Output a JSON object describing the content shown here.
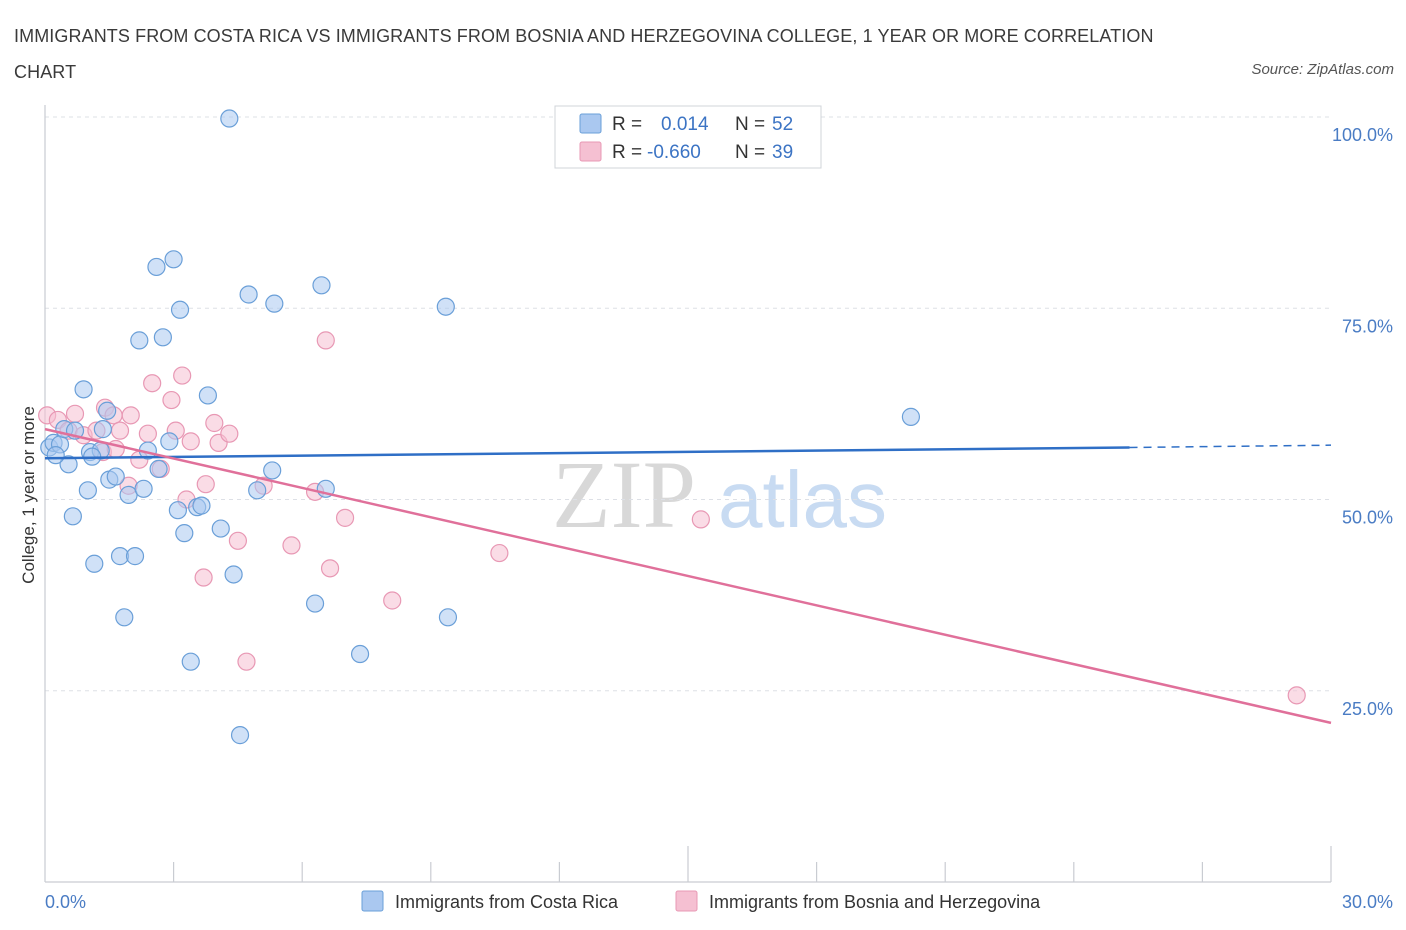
{
  "title": "IMMIGRANTS FROM COSTA RICA VS IMMIGRANTS FROM BOSNIA AND HERZEGOVINA COLLEGE, 1 YEAR OR MORE CORRELATION CHART",
  "source": "Source: ZipAtlas.com",
  "watermark": {
    "zip": "ZIP",
    "atlas": "atlas"
  },
  "colors": {
    "blue_fill": "#aac8f0",
    "blue_stroke": "#6a9fd8",
    "blue_line": "#2f6fc6",
    "pink_fill": "#f5c0d2",
    "pink_stroke": "#e898b4",
    "pink_line": "#e0709a",
    "tick_text": "#4a7cc4",
    "grid": "#dde0e6"
  },
  "legend": {
    "rows": [
      {
        "r_label": "R =",
        "r_value": "0.014",
        "n_label": "N =",
        "n_value": "52"
      },
      {
        "r_label": "R =",
        "r_value": "-0.660",
        "n_label": "N =",
        "n_value": "39"
      }
    ]
  },
  "chart_data": {
    "type": "scatter",
    "title": "IMMIGRANTS FROM COSTA RICA VS IMMIGRANTS FROM BOSNIA AND HERZEGOVINA COLLEGE, 1 YEAR OR MORE CORRELATION CHART",
    "xlabel": "",
    "ylabel": "College, 1 year or more",
    "xlim": [
      0,
      30
    ],
    "ylim": [
      0,
      100
    ],
    "x_tick_labels": [
      "0.0%",
      "30.0%"
    ],
    "y_tick_labels": [
      "100.0%",
      "75.0%",
      "50.0%",
      "25.0%"
    ],
    "y_gridlines": [
      100,
      75,
      50,
      25
    ],
    "series": [
      {
        "name": "Immigrants from Costa Rica",
        "R": 0.014,
        "N": 52,
        "trend": {
          "x0": 0,
          "y0": 55.4,
          "x1": 25.3,
          "y1": 56.8,
          "dashed_to_x": 30,
          "dashed_to_y": 57.1
        },
        "points": [
          [
            0.1,
            56.8
          ],
          [
            0.2,
            57.4
          ],
          [
            0.35,
            57.2
          ],
          [
            0.45,
            59.2
          ],
          [
            0.55,
            54.6
          ],
          [
            0.65,
            47.8
          ],
          [
            0.9,
            64.4
          ],
          [
            1.0,
            51.2
          ],
          [
            1.05,
            56.2
          ],
          [
            1.15,
            41.6
          ],
          [
            1.3,
            56.4
          ],
          [
            1.35,
            59.2
          ],
          [
            1.45,
            61.6
          ],
          [
            1.5,
            52.6
          ],
          [
            1.65,
            53.0
          ],
          [
            1.75,
            42.6
          ],
          [
            1.85,
            34.6
          ],
          [
            1.95,
            50.6
          ],
          [
            2.1,
            42.6
          ],
          [
            2.2,
            70.8
          ],
          [
            2.3,
            51.4
          ],
          [
            2.4,
            56.4
          ],
          [
            2.6,
            80.4
          ],
          [
            2.65,
            54.0
          ],
          [
            2.75,
            71.2
          ],
          [
            2.9,
            57.6
          ],
          [
            3.0,
            81.4
          ],
          [
            3.1,
            48.6
          ],
          [
            3.15,
            74.8
          ],
          [
            3.25,
            45.6
          ],
          [
            3.4,
            28.8
          ],
          [
            3.55,
            49.0
          ],
          [
            3.65,
            49.2
          ],
          [
            3.8,
            63.6
          ],
          [
            4.1,
            46.2
          ],
          [
            4.3,
            99.8
          ],
          [
            4.4,
            40.2
          ],
          [
            4.55,
            19.2
          ],
          [
            4.75,
            76.8
          ],
          [
            4.95,
            51.2
          ],
          [
            5.35,
            75.6
          ],
          [
            5.3,
            53.8
          ],
          [
            6.3,
            36.4
          ],
          [
            6.45,
            78.0
          ],
          [
            6.55,
            51.4
          ],
          [
            7.35,
            29.8
          ],
          [
            9.35,
            75.2
          ],
          [
            9.4,
            34.6
          ],
          [
            20.2,
            60.8
          ],
          [
            0.25,
            55.8
          ],
          [
            0.7,
            59.0
          ],
          [
            1.1,
            55.6
          ]
        ]
      },
      {
        "name": "Immigrants from Bosnia and Herzegovina",
        "R": -0.66,
        "N": 39,
        "trend": {
          "x0": 0,
          "y0": 59.2,
          "x1": 30,
          "y1": 20.8
        },
        "points": [
          [
            0.05,
            61.0
          ],
          [
            0.3,
            60.4
          ],
          [
            0.55,
            59.0
          ],
          [
            0.7,
            61.2
          ],
          [
            0.9,
            58.4
          ],
          [
            1.2,
            59.0
          ],
          [
            1.35,
            56.2
          ],
          [
            1.4,
            62.0
          ],
          [
            1.6,
            61.0
          ],
          [
            1.65,
            56.6
          ],
          [
            1.75,
            59.0
          ],
          [
            1.95,
            51.8
          ],
          [
            2.0,
            61.0
          ],
          [
            2.2,
            55.2
          ],
          [
            2.4,
            58.6
          ],
          [
            2.5,
            65.2
          ],
          [
            2.7,
            54.0
          ],
          [
            2.95,
            63.0
          ],
          [
            3.05,
            59.0
          ],
          [
            3.2,
            66.2
          ],
          [
            3.3,
            50.0
          ],
          [
            3.4,
            57.6
          ],
          [
            3.7,
            39.8
          ],
          [
            3.75,
            52.0
          ],
          [
            3.95,
            60.0
          ],
          [
            4.05,
            57.4
          ],
          [
            4.3,
            58.6
          ],
          [
            4.5,
            44.6
          ],
          [
            4.7,
            28.8
          ],
          [
            5.1,
            51.8
          ],
          [
            5.75,
            44.0
          ],
          [
            6.3,
            51.0
          ],
          [
            6.55,
            70.8
          ],
          [
            6.65,
            41.0
          ],
          [
            7.0,
            47.6
          ],
          [
            8.1,
            36.8
          ],
          [
            10.6,
            43.0
          ],
          [
            15.3,
            47.4
          ],
          [
            29.2,
            24.4
          ]
        ]
      }
    ]
  },
  "bottom_legend": [
    "Immigrants from Costa Rica",
    "Immigrants from Bosnia and Herzegovina"
  ]
}
